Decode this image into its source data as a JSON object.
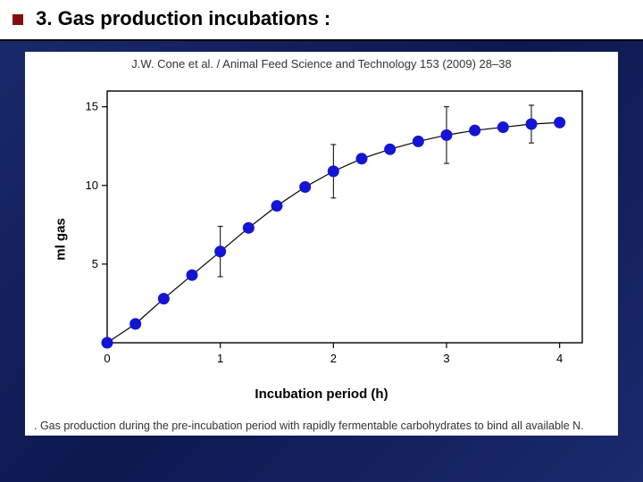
{
  "slide": {
    "title": "3. Gas production incubations :",
    "title_bullet_color": "#801010",
    "background_gradient": [
      "#1a2a6c",
      "#0d1850",
      "#1a2a6c"
    ]
  },
  "figure": {
    "source_line": "J.W. Cone et al. / Animal Feed Science and Technology 153 (2009) 28–38",
    "caption": ". Gas production during the pre-incubation period with rapidly fermentable carbohydrates to bind all available N.",
    "panel_bg": "#ffffff"
  },
  "chart": {
    "type": "scatter-line-errorbar",
    "xlabel": "Incubation period (h)",
    "ylabel": "ml gas",
    "label_fontsize": 15,
    "label_fontweight": "bold",
    "axis_color": "#000000",
    "tick_fontsize": 13,
    "xlim": [
      0,
      4.2
    ],
    "ylim": [
      0,
      16
    ],
    "xticks": [
      0,
      1,
      2,
      3,
      4
    ],
    "yticks": [
      5,
      10,
      15
    ],
    "marker_color": "#1414d4",
    "marker_size": 6,
    "line_color": "#000000",
    "line_width": 1.2,
    "errorbar_color": "#000000",
    "errorbar_width": 1,
    "errorbar_cap": 6,
    "background_color": "#ffffff",
    "points": [
      {
        "x": 0.0,
        "y": 0.0,
        "err": 0.0
      },
      {
        "x": 0.25,
        "y": 1.2,
        "err": 0.25
      },
      {
        "x": 0.5,
        "y": 2.8,
        "err": 0.35
      },
      {
        "x": 0.75,
        "y": 4.3,
        "err": 0.4
      },
      {
        "x": 1.0,
        "y": 5.8,
        "err": 1.6
      },
      {
        "x": 1.25,
        "y": 7.3,
        "err": 0.4
      },
      {
        "x": 1.5,
        "y": 8.7,
        "err": 0.4
      },
      {
        "x": 1.75,
        "y": 9.9,
        "err": 0.4
      },
      {
        "x": 2.0,
        "y": 10.9,
        "err": 1.7
      },
      {
        "x": 2.25,
        "y": 11.7,
        "err": 0.4
      },
      {
        "x": 2.5,
        "y": 12.3,
        "err": 0.35
      },
      {
        "x": 2.75,
        "y": 12.8,
        "err": 0.35
      },
      {
        "x": 3.0,
        "y": 13.2,
        "err": 1.8
      },
      {
        "x": 3.25,
        "y": 13.5,
        "err": 0.35
      },
      {
        "x": 3.5,
        "y": 13.7,
        "err": 0.3
      },
      {
        "x": 3.75,
        "y": 13.9,
        "err": 1.2
      },
      {
        "x": 4.0,
        "y": 14.0,
        "err": 0.3
      }
    ]
  }
}
